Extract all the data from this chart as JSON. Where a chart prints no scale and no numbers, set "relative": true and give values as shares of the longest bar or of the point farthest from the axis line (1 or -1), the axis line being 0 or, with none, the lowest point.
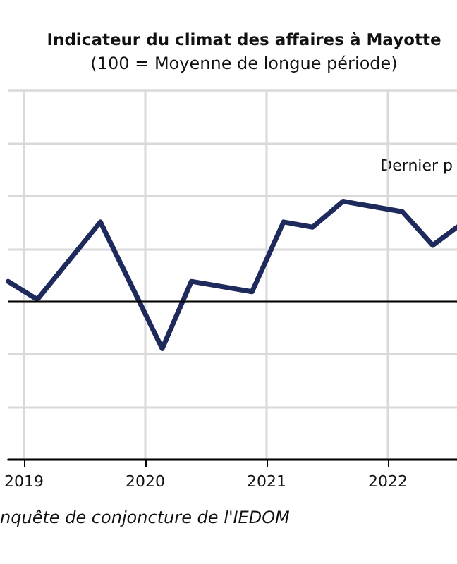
{
  "chart_data": {
    "type": "line",
    "title": "Indicateur du climat des affaires à Mayotte",
    "subtitle": "(100 = Moyenne de longue période)",
    "annotations": [
      "Dernier p",
      "nquête de conjoncture de l'IEDOM"
    ],
    "relative": true,
    "x": [
      2018.87,
      2019.11,
      2019.63,
      2020.14,
      2020.38,
      2020.88,
      2021.14,
      2021.38,
      2021.63,
      2022.12,
      2022.37,
      2022.57
    ],
    "values": [
      0.69,
      0.62,
      0.92,
      0.43,
      0.69,
      0.65,
      0.92,
      0.9,
      1,
      0.96,
      0.83,
      0.9
    ],
    "color": "#1f2a5c",
    "xlim": [
      2018.87,
      2022.57
    ],
    "xticks": [
      2019,
      2020,
      2021,
      2022
    ],
    "grid": true,
    "marker": "none",
    "line_style": "solid",
    "ref_lines": [
      {
        "axis": "y",
        "value": 0.61,
        "color": "#000000"
      }
    ]
  }
}
